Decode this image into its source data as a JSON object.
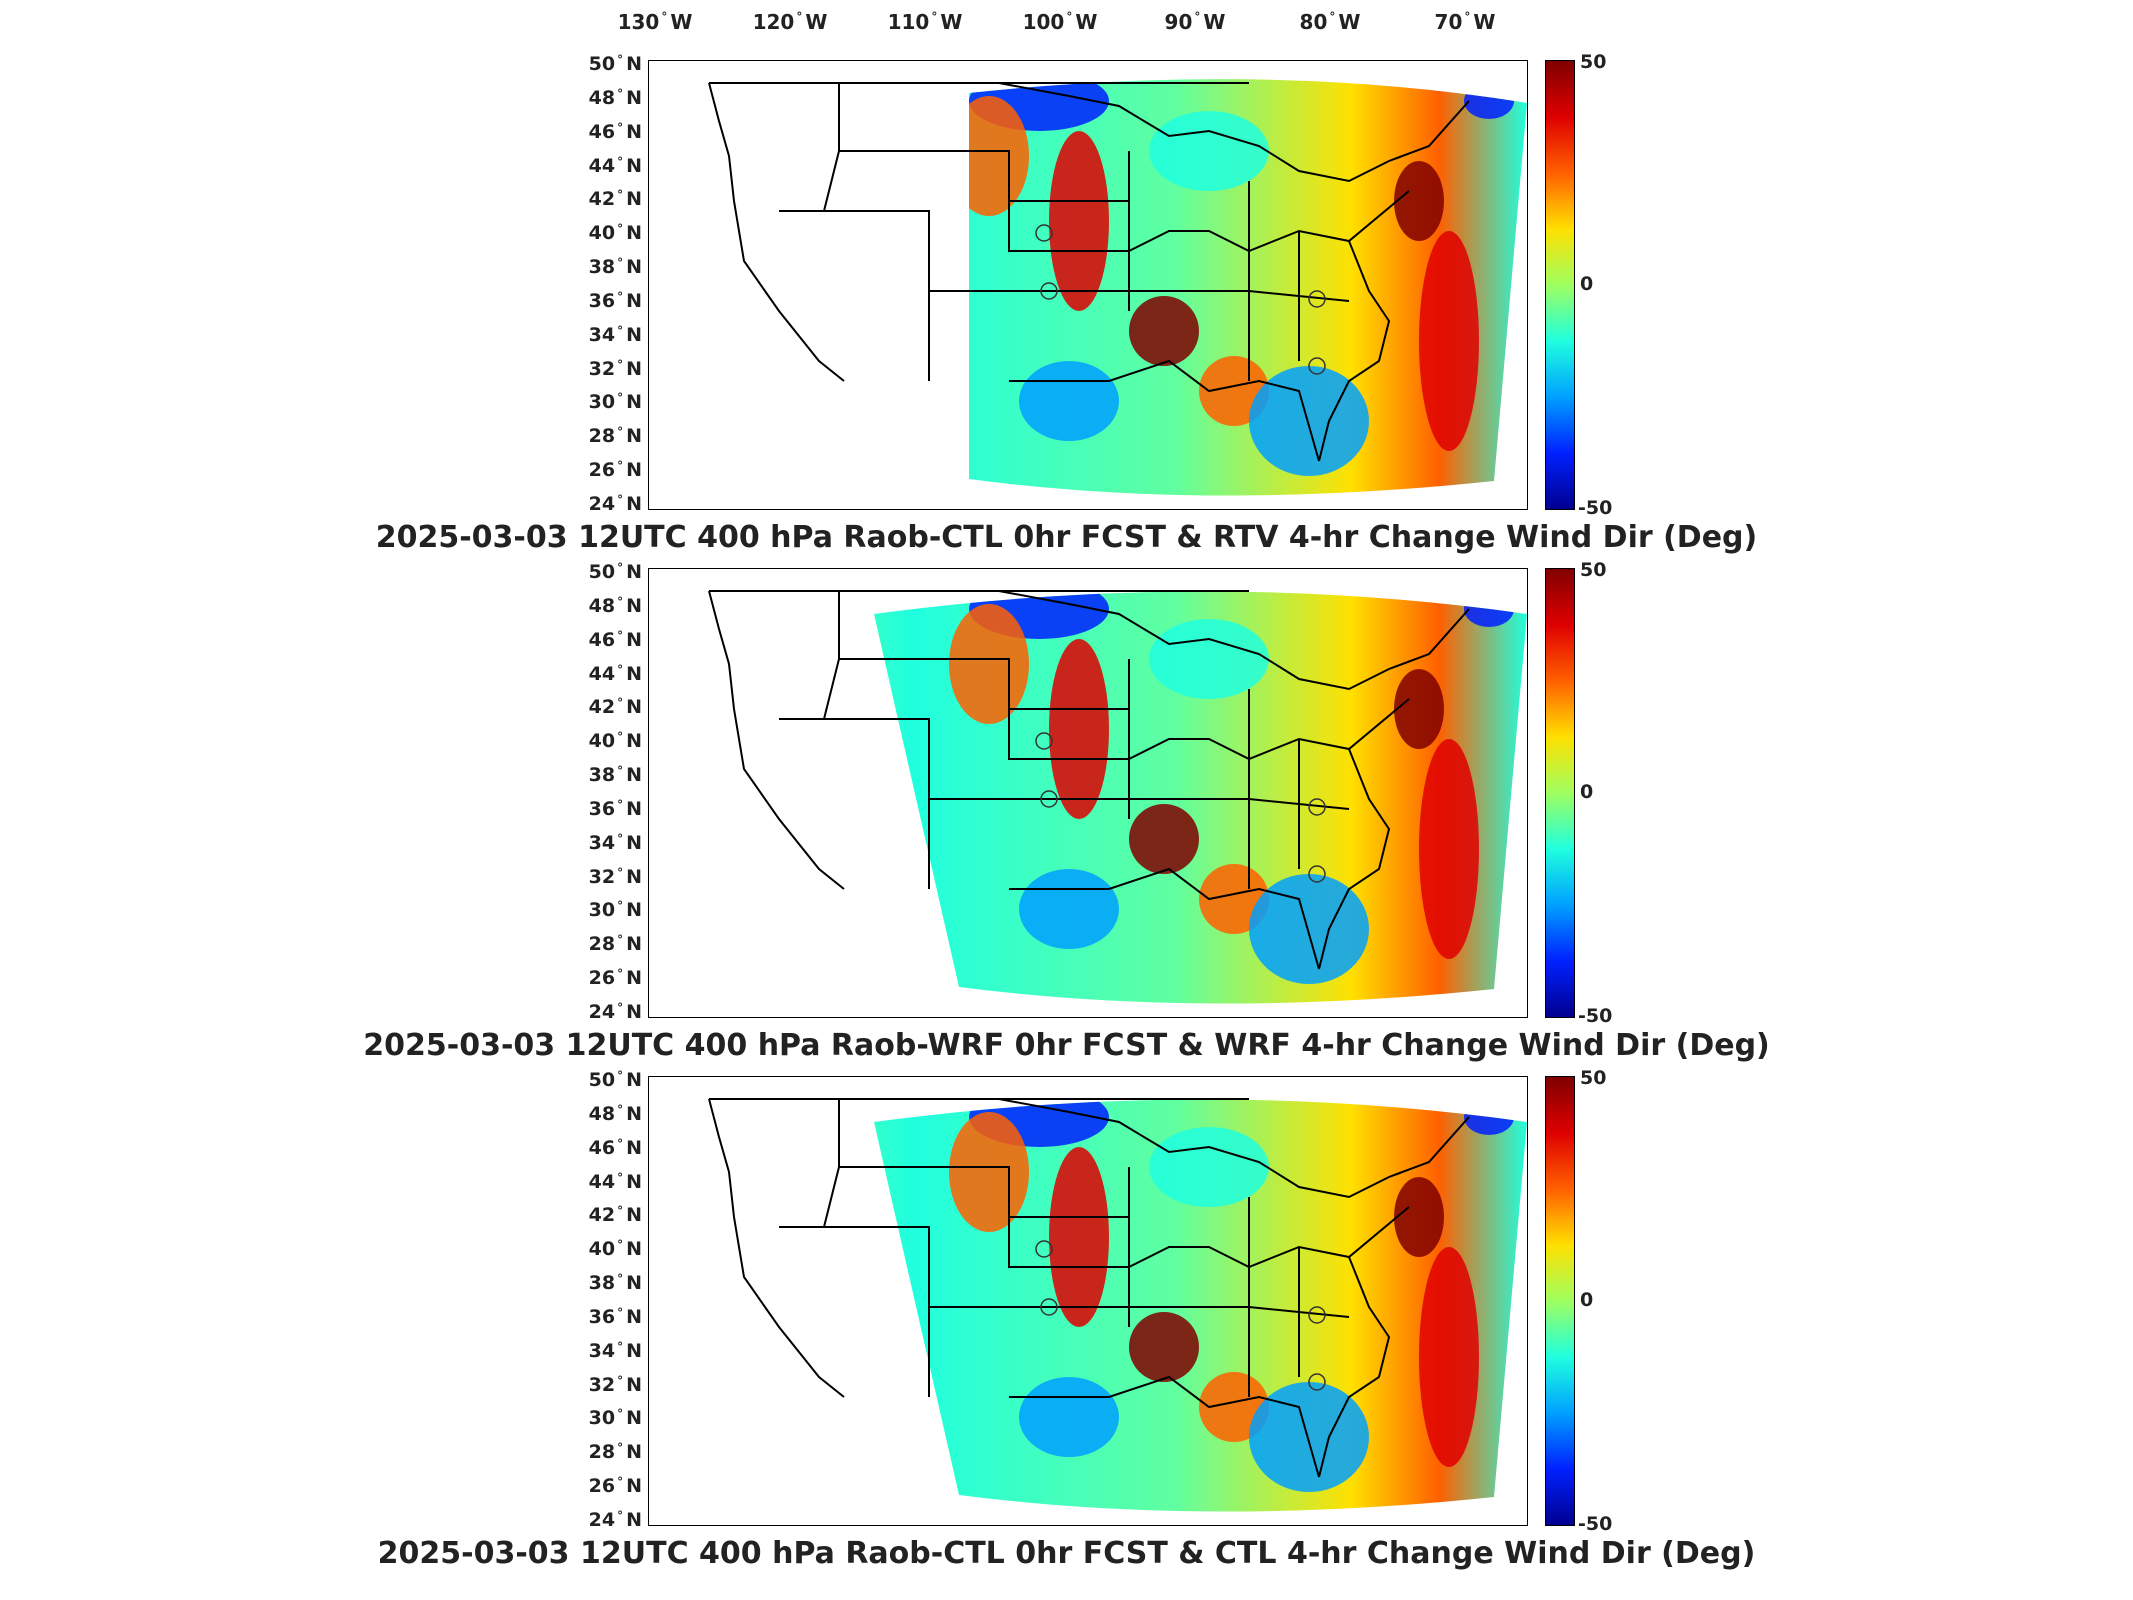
{
  "map": {
    "longitude_labels": [
      "130",
      "120",
      "110",
      "100",
      "90",
      "80",
      "70"
    ],
    "longitude_hemisphere": "W",
    "latitude_labels": [
      "50",
      "48",
      "46",
      "44",
      "42",
      "40",
      "38",
      "36",
      "34",
      "32",
      "30",
      "28",
      "26",
      "24"
    ],
    "latitude_hemisphere": "N",
    "degree_symbol": "°"
  },
  "colorbar": {
    "max_label": "50",
    "mid_label": "0",
    "min_label": "-50",
    "colormap": "jet",
    "colors": [
      "#00008f",
      "#0020ff",
      "#00a0ff",
      "#20ffdf",
      "#9fff60",
      "#ffe000",
      "#ff6000",
      "#df0000",
      "#800000"
    ]
  },
  "panels": [
    {
      "caption": "2025-03-03 12UTC 400 hPa Raob-CTL 0hr FCST & RTV 4-hr Change Wind Dir (Deg)"
    },
    {
      "caption": "2025-03-03 12UTC 400 hPa Raob-WRF 0hr FCST & WRF 4-hr Change Wind Dir (Deg)"
    },
    {
      "caption": "2025-03-03 12UTC 400 hPa Raob-CTL 0hr FCST & CTL 4-hr Change Wind Dir (Deg)"
    }
  ]
}
